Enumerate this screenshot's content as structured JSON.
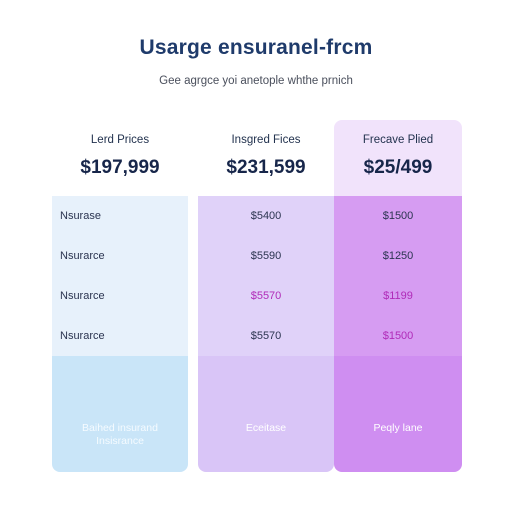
{
  "header": {
    "title": "Usarge ensuranel-frcm",
    "subtitle": "Gee agrgce yoi anetople whthe prnich"
  },
  "columns": [
    {
      "label": "Lerd Prices",
      "price": "$197,999",
      "rows": [
        "Nsurase",
        "Nsurarce",
        "Nsurarce",
        "Nsurarce"
      ],
      "footer_line1": "Baihed insurand",
      "footer_line2": "Insisrance"
    },
    {
      "label": "Insgred Fices",
      "price": "$231,599",
      "rows": [
        "$5400",
        "$5590",
        "$5570",
        "$5570"
      ],
      "footer": "Eceitase"
    },
    {
      "label": "Frecave Plied",
      "price": "$25/499",
      "rows": [
        "$1500",
        "$1250",
        "$1199",
        "$1500"
      ],
      "footer": "Peqly lane"
    }
  ]
}
